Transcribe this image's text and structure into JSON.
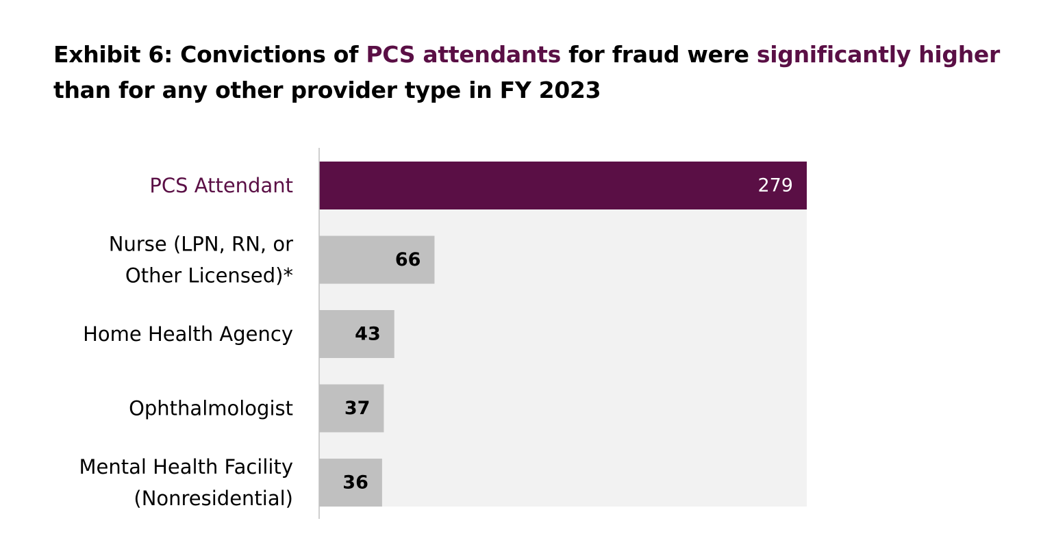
{
  "title": {
    "part1": "Exhibit 6: Convictions of ",
    "highlight1": "PCS attendants",
    "part2": " for fraud were ",
    "highlight2": "significantly higher",
    "part3": " than for any other provider type in FY 2023"
  },
  "colors": {
    "highlight_bar": "#5a0f45",
    "highlight_label": "#5a0f45",
    "other_bar": "#c0c0c0",
    "background_band": "#f2f2f2",
    "axis": "#bfbfbf"
  },
  "chart_data": {
    "type": "bar",
    "orientation": "horizontal",
    "categories": [
      [
        "PCS Attendant"
      ],
      [
        "Nurse (LPN, RN, or",
        "Other Licensed)*"
      ],
      [
        "Home Health Agency"
      ],
      [
        "Ophthalmologist"
      ],
      [
        "Mental Health Facility",
        "(Nonresidential)"
      ]
    ],
    "values": [
      279,
      66,
      43,
      37,
      36
    ],
    "highlighted_index": 0,
    "data_labels": true,
    "grid": false,
    "legend": "none",
    "xlabel": "",
    "ylabel": ""
  }
}
